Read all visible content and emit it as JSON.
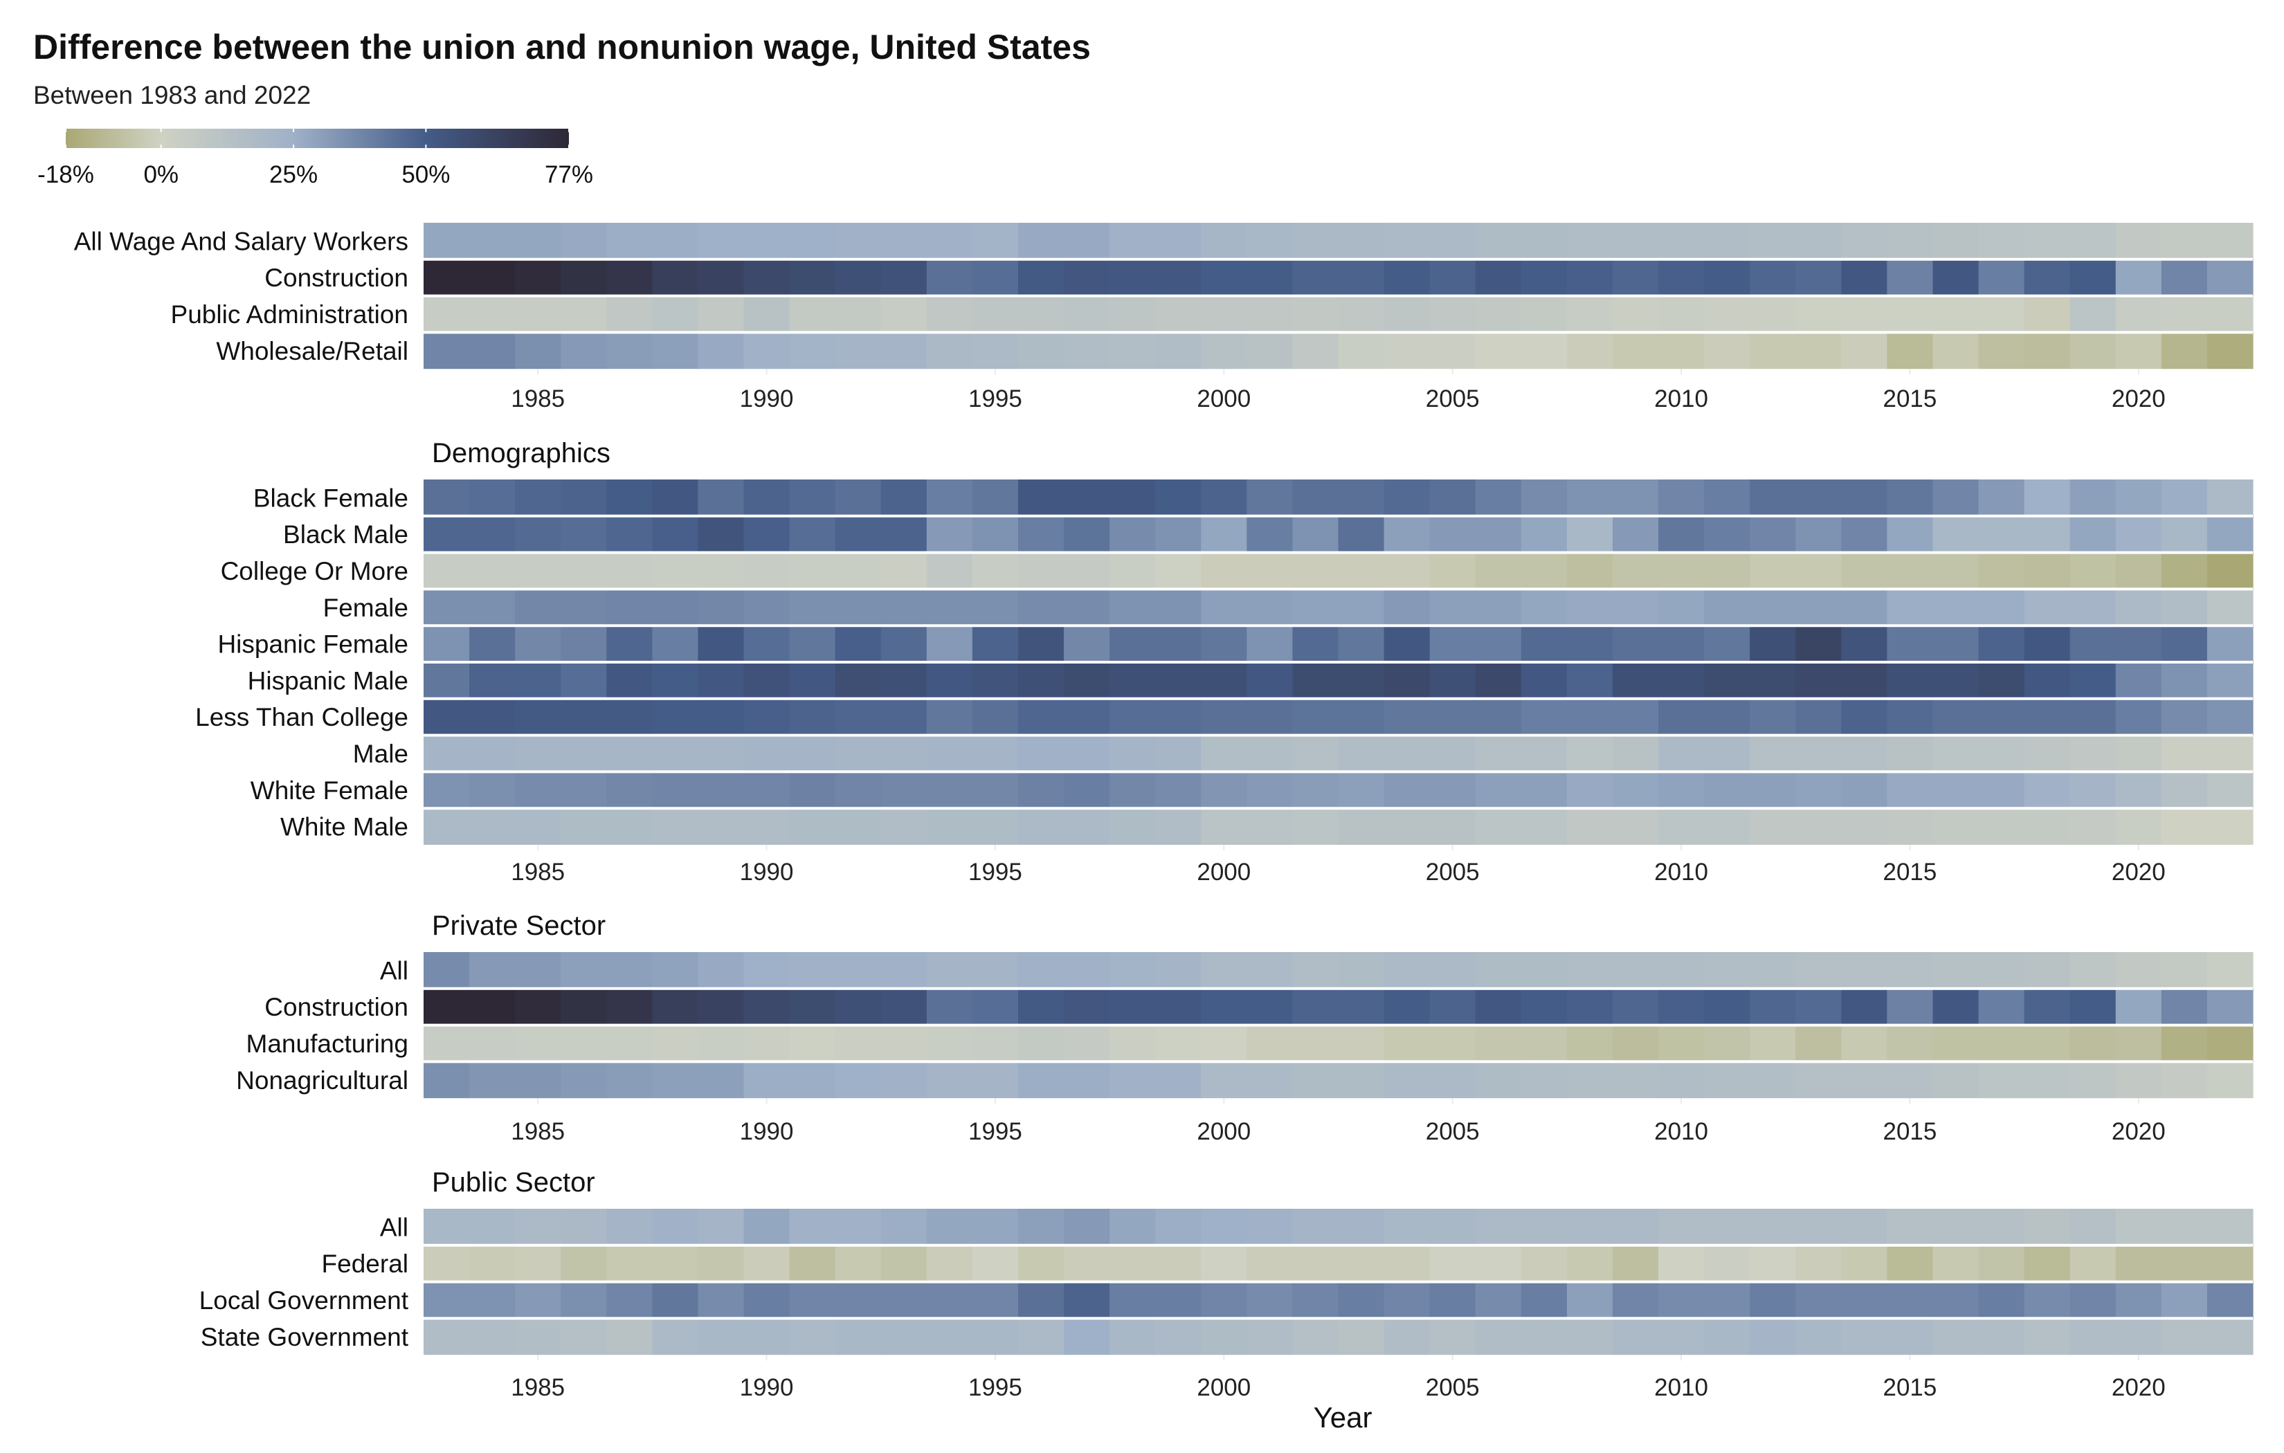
{
  "chart_data": {
    "type": "heatmap",
    "title": "Difference between the union and nonunion wage, United States",
    "subtitle": "Between 1983 and 2022",
    "xlabel": "Year",
    "x_range": [
      1983,
      2022
    ],
    "x_ticks": [
      "1985",
      "1990",
      "1995",
      "2000",
      "2005",
      "2010",
      "2015",
      "2020"
    ],
    "value_unit": "percent",
    "legend": {
      "placement": "top-left",
      "range": [
        -18,
        77
      ],
      "tick_labels": [
        "-18%",
        "0%",
        "25%",
        "50%",
        "77%"
      ],
      "tick_values": [
        -18,
        0,
        25,
        50,
        77
      ],
      "color_stops": [
        {
          "value": -18,
          "color": "#a9a874"
        },
        {
          "value": 0,
          "color": "#cfd2c3"
        },
        {
          "value": 25,
          "color": "#9fb1c8"
        },
        {
          "value": 50,
          "color": "#445c88"
        },
        {
          "value": 77,
          "color": "#2e2836"
        }
      ]
    },
    "panels": [
      {
        "title": "",
        "rows": [
          {
            "label": "All Wage And Salary Workers",
            "values": [
              28,
              28,
              28,
              27,
              26,
              26,
              25,
              25,
              25,
              24,
              24,
              24,
              23,
              27,
              27,
              24,
              24,
              21,
              20,
              19,
              19,
              18,
              18,
              17,
              17,
              16,
              16,
              16,
              16,
              15,
              15,
              14,
              13,
              12,
              11,
              10,
              10,
              7,
              6,
              6
            ]
          },
          {
            "label": "Construction",
            "values": [
              77,
              77,
              75,
              72,
              70,
              65,
              63,
              60,
              58,
              56,
              55,
              44,
              45,
              51,
              53,
              52,
              52,
              50,
              50,
              48,
              48,
              50,
              48,
              52,
              50,
              49,
              47,
              49,
              50,
              47,
              46,
              52,
              39,
              52,
              40,
              48,
              50,
              28,
              38,
              32
            ]
          },
          {
            "label": "Public Administration",
            "values": [
              4,
              4,
              4,
              4,
              8,
              10,
              7,
              12,
              6,
              6,
              4,
              8,
              9,
              9,
              10,
              9,
              8,
              8,
              8,
              7,
              8,
              9,
              8,
              7,
              6,
              4,
              2,
              3,
              2,
              2,
              1,
              1,
              1,
              1,
              1,
              -2,
              10,
              4,
              3,
              3
            ]
          },
          {
            "label": "Wholesale/Retail",
            "values": [
              38,
              38,
              35,
              32,
              31,
              30,
              27,
              24,
              23,
              22,
              22,
              19,
              18,
              17,
              16,
              15,
              16,
              13,
              12,
              8,
              3,
              2,
              2,
              0,
              0,
              -2,
              -4,
              -4,
              -2,
              -4,
              -4,
              -2,
              -10,
              -4,
              -8,
              -9,
              -6,
              -4,
              -12,
              -16
            ]
          }
        ]
      },
      {
        "title": "Demographics",
        "rows": [
          {
            "label": "Black Female",
            "values": [
              44,
              45,
              47,
              48,
              50,
              52,
              44,
              48,
              46,
              44,
              48,
              40,
              42,
              52,
              52,
              52,
              50,
              48,
              42,
              44,
              44,
              46,
              44,
              40,
              36,
              34,
              34,
              38,
              40,
              44,
              44,
              44,
              42,
              38,
              32,
              25,
              30,
              28,
              26,
              18
            ]
          },
          {
            "label": "Black Male",
            "values": [
              47,
              47,
              46,
              45,
              47,
              49,
              54,
              49,
              45,
              48,
              48,
              32,
              34,
              40,
              43,
              36,
              34,
              28,
              40,
              34,
              44,
              30,
              32,
              32,
              28,
              20,
              32,
              42,
              40,
              38,
              34,
              38,
              28,
              20,
              20,
              20,
              28,
              24,
              20,
              28
            ]
          },
          {
            "label": "College Or More",
            "values": [
              4,
              4,
              4,
              4,
              4,
              3,
              3,
              4,
              3,
              3,
              2,
              8,
              4,
              5,
              5,
              3,
              1,
              -2,
              -2,
              -2,
              -2,
              -2,
              -4,
              -6,
              -6,
              -8,
              -6,
              -6,
              -6,
              -4,
              -4,
              -6,
              -6,
              -6,
              -8,
              -9,
              -7,
              -9,
              -14,
              -18
            ]
          },
          {
            "label": "Female",
            "values": [
              35,
              35,
              37,
              37,
              38,
              38,
              37,
              36,
              35,
              35,
              35,
              35,
              35,
              36,
              36,
              34,
              34,
              30,
              30,
              29,
              29,
              32,
              30,
              30,
              28,
              27,
              27,
              28,
              30,
              30,
              30,
              30,
              26,
              26,
              26,
              22,
              22,
              18,
              16,
              10
            ]
          },
          {
            "label": "Hispanic Female",
            "values": [
              34,
              44,
              37,
              39,
              47,
              40,
              52,
              45,
              42,
              49,
              46,
              32,
              48,
              54,
              37,
              44,
              44,
              42,
              34,
              46,
              42,
              52,
              40,
              40,
              46,
              46,
              44,
              44,
              42,
              56,
              62,
              54,
              42,
              42,
              48,
              52,
              44,
              44,
              46,
              30
            ]
          },
          {
            "label": "Hispanic Male",
            "values": [
              42,
              48,
              48,
              45,
              52,
              50,
              52,
              55,
              52,
              57,
              56,
              52,
              54,
              56,
              58,
              56,
              56,
              56,
              52,
              58,
              58,
              60,
              56,
              60,
              52,
              48,
              56,
              56,
              58,
              58,
              60,
              60,
              56,
              56,
              58,
              52,
              50,
              38,
              34,
              30
            ]
          },
          {
            "label": "Less Than College",
            "values": [
              52,
              52,
              51,
              51,
              51,
              50,
              50,
              49,
              48,
              47,
              47,
              42,
              44,
              47,
              47,
              45,
              45,
              44,
              44,
              43,
              43,
              42,
              42,
              42,
              40,
              40,
              40,
              44,
              44,
              42,
              44,
              48,
              46,
              44,
              44,
              44,
              44,
              40,
              36,
              34
            ]
          },
          {
            "label": "Male",
            "values": [
              22,
              22,
              21,
              21,
              21,
              21,
              21,
              22,
              22,
              21,
              21,
              22,
              22,
              24,
              24,
              22,
              21,
              15,
              15,
              14,
              16,
              16,
              16,
              14,
              14,
              10,
              12,
              18,
              18,
              14,
              14,
              14,
              12,
              10,
              10,
              9,
              8,
              6,
              2,
              2
            ]
          },
          {
            "label": "White Female",
            "values": [
              34,
              35,
              36,
              36,
              37,
              38,
              38,
              38,
              39,
              38,
              37,
              37,
              37,
              39,
              40,
              37,
              36,
              33,
              32,
              31,
              30,
              32,
              32,
              30,
              30,
              27,
              28,
              29,
              30,
              30,
              29,
              30,
              27,
              27,
              27,
              24,
              22,
              18,
              14,
              10
            ]
          },
          {
            "label": "White Male",
            "values": [
              18,
              18,
              18,
              17,
              17,
              16,
              16,
              16,
              17,
              17,
              16,
              17,
              17,
              18,
              18,
              17,
              16,
              11,
              11,
              10,
              12,
              12,
              12,
              10,
              10,
              8,
              8,
              10,
              10,
              8,
              8,
              8,
              7,
              6,
              6,
              6,
              5,
              3,
              0,
              0
            ]
          }
        ]
      },
      {
        "title": "Private Sector",
        "rows": [
          {
            "label": "All",
            "values": [
              36,
              32,
              32,
              30,
              30,
              29,
              27,
              25,
              24,
              24,
              24,
              22,
              22,
              24,
              24,
              23,
              22,
              18,
              18,
              16,
              17,
              18,
              18,
              17,
              17,
              16,
              16,
              16,
              15,
              15,
              14,
              14,
              14,
              13,
              13,
              12,
              9,
              7,
              6,
              3
            ]
          },
          {
            "label": "Construction",
            "values": [
              77,
              77,
              75,
              72,
              70,
              65,
              63,
              60,
              58,
              56,
              55,
              44,
              45,
              51,
              53,
              52,
              52,
              50,
              50,
              48,
              48,
              50,
              48,
              52,
              50,
              49,
              47,
              49,
              50,
              47,
              46,
              52,
              39,
              52,
              40,
              48,
              50,
              28,
              38,
              32
            ]
          },
          {
            "label": "Manufacturing",
            "values": [
              4,
              4,
              3,
              3,
              3,
              2,
              3,
              2,
              1,
              2,
              2,
              3,
              4,
              6,
              5,
              2,
              1,
              0,
              -2,
              -2,
              -2,
              -4,
              -4,
              -5,
              -5,
              -7,
              -9,
              -7,
              -6,
              -4,
              -8,
              -4,
              -6,
              -7,
              -7,
              -7,
              -9,
              -8,
              -14,
              -16
            ]
          },
          {
            "label": "Nonagricultural",
            "values": [
              35,
              33,
              33,
              32,
              31,
              30,
              30,
              26,
              26,
              25,
              24,
              22,
              22,
              26,
              26,
              24,
              24,
              18,
              18,
              17,
              17,
              18,
              18,
              17,
              16,
              15,
              15,
              16,
              15,
              15,
              14,
              14,
              14,
              12,
              10,
              10,
              9,
              7,
              5,
              3
            ]
          }
        ]
      },
      {
        "title": "Public Sector",
        "rows": [
          {
            "label": "All",
            "values": [
              20,
              20,
              18,
              19,
              22,
              24,
              22,
              28,
              24,
              24,
              26,
              28,
              28,
              30,
              32,
              28,
              26,
              25,
              24,
              22,
              22,
              20,
              20,
              18,
              18,
              18,
              18,
              16,
              16,
              16,
              16,
              16,
              14,
              14,
              14,
              12,
              14,
              10,
              10,
              10
            ]
          },
          {
            "label": "Federal",
            "values": [
              -2,
              -3,
              -2,
              -6,
              -4,
              -4,
              -5,
              -2,
              -8,
              -4,
              -6,
              -2,
              0,
              -4,
              -2,
              -2,
              -2,
              0,
              -2,
              -2,
              -2,
              -2,
              0,
              0,
              -2,
              -4,
              -8,
              0,
              2,
              0,
              -2,
              -4,
              -10,
              -4,
              -6,
              -10,
              -4,
              -9,
              -9,
              -9
            ]
          },
          {
            "label": "Local Government",
            "values": [
              34,
              34,
              32,
              35,
              38,
              42,
              36,
              40,
              38,
              38,
              38,
              38,
              38,
              44,
              48,
              40,
              40,
              38,
              36,
              38,
              40,
              38,
              40,
              36,
              40,
              30,
              38,
              36,
              36,
              40,
              38,
              38,
              38,
              38,
              40,
              36,
              38,
              34,
              30,
              38
            ]
          },
          {
            "label": "State Government",
            "values": [
              16,
              16,
              15,
              14,
              12,
              18,
              20,
              20,
              18,
              20,
              20,
              20,
              20,
              18,
              25,
              20,
              18,
              17,
              16,
              14,
              12,
              16,
              14,
              16,
              16,
              16,
              18,
              18,
              20,
              22,
              20,
              18,
              18,
              16,
              16,
              14,
              16,
              16,
              14,
              14
            ]
          }
        ]
      }
    ]
  }
}
